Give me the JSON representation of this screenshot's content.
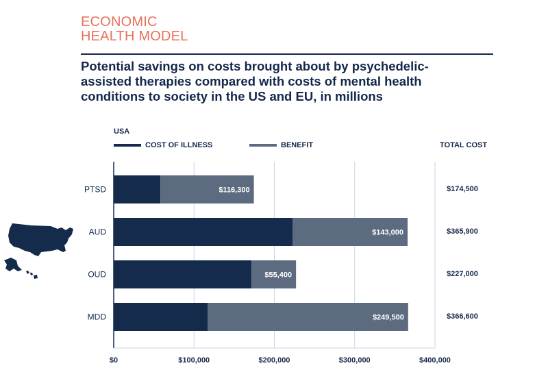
{
  "header": {
    "eyebrow_line1": "ECONOMIC",
    "eyebrow_line2": "HEALTH MODEL",
    "headline_line1": "Potential savings on costs brought about by psychedelic-",
    "headline_line2": "assisted therapies compared with costs of mental health",
    "headline_line3": "conditions to society in the US and EU, in millions"
  },
  "region_label": "USA",
  "legend": {
    "cost_label": "COST OF ILLNESS",
    "benefit_label": "BENEFIT"
  },
  "total_header": "TOTAL COST",
  "map_icon": "usa-map-icon",
  "colors": {
    "accent": "#e8705a",
    "navy": "#14284b",
    "cost": "#142b4c",
    "benefit": "#5d6b80",
    "grid": "#c9d6e3"
  },
  "chart_data": {
    "type": "bar",
    "orientation": "horizontal",
    "stacked": true,
    "categories": [
      "PTSD",
      "AUD",
      "OUD",
      "MDD"
    ],
    "series": [
      {
        "name": "COST OF ILLNESS",
        "values": [
          58200,
          222900,
          171600,
          117100
        ]
      },
      {
        "name": "BENEFIT",
        "values": [
          116300,
          143000,
          55400,
          249500
        ]
      }
    ],
    "benefit_labels": [
      "$116,300",
      "$143,000",
      "$55,400",
      "$249,500"
    ],
    "totals": [
      "$174,500",
      "$365,900",
      "$227,000",
      "$366,600"
    ],
    "x_ticks": [
      "$0",
      "$100,000",
      "$200,000",
      "$300,000",
      "$400,000"
    ],
    "xlim": [
      0,
      400000
    ],
    "grid": true,
    "legend_position": "top-left"
  }
}
